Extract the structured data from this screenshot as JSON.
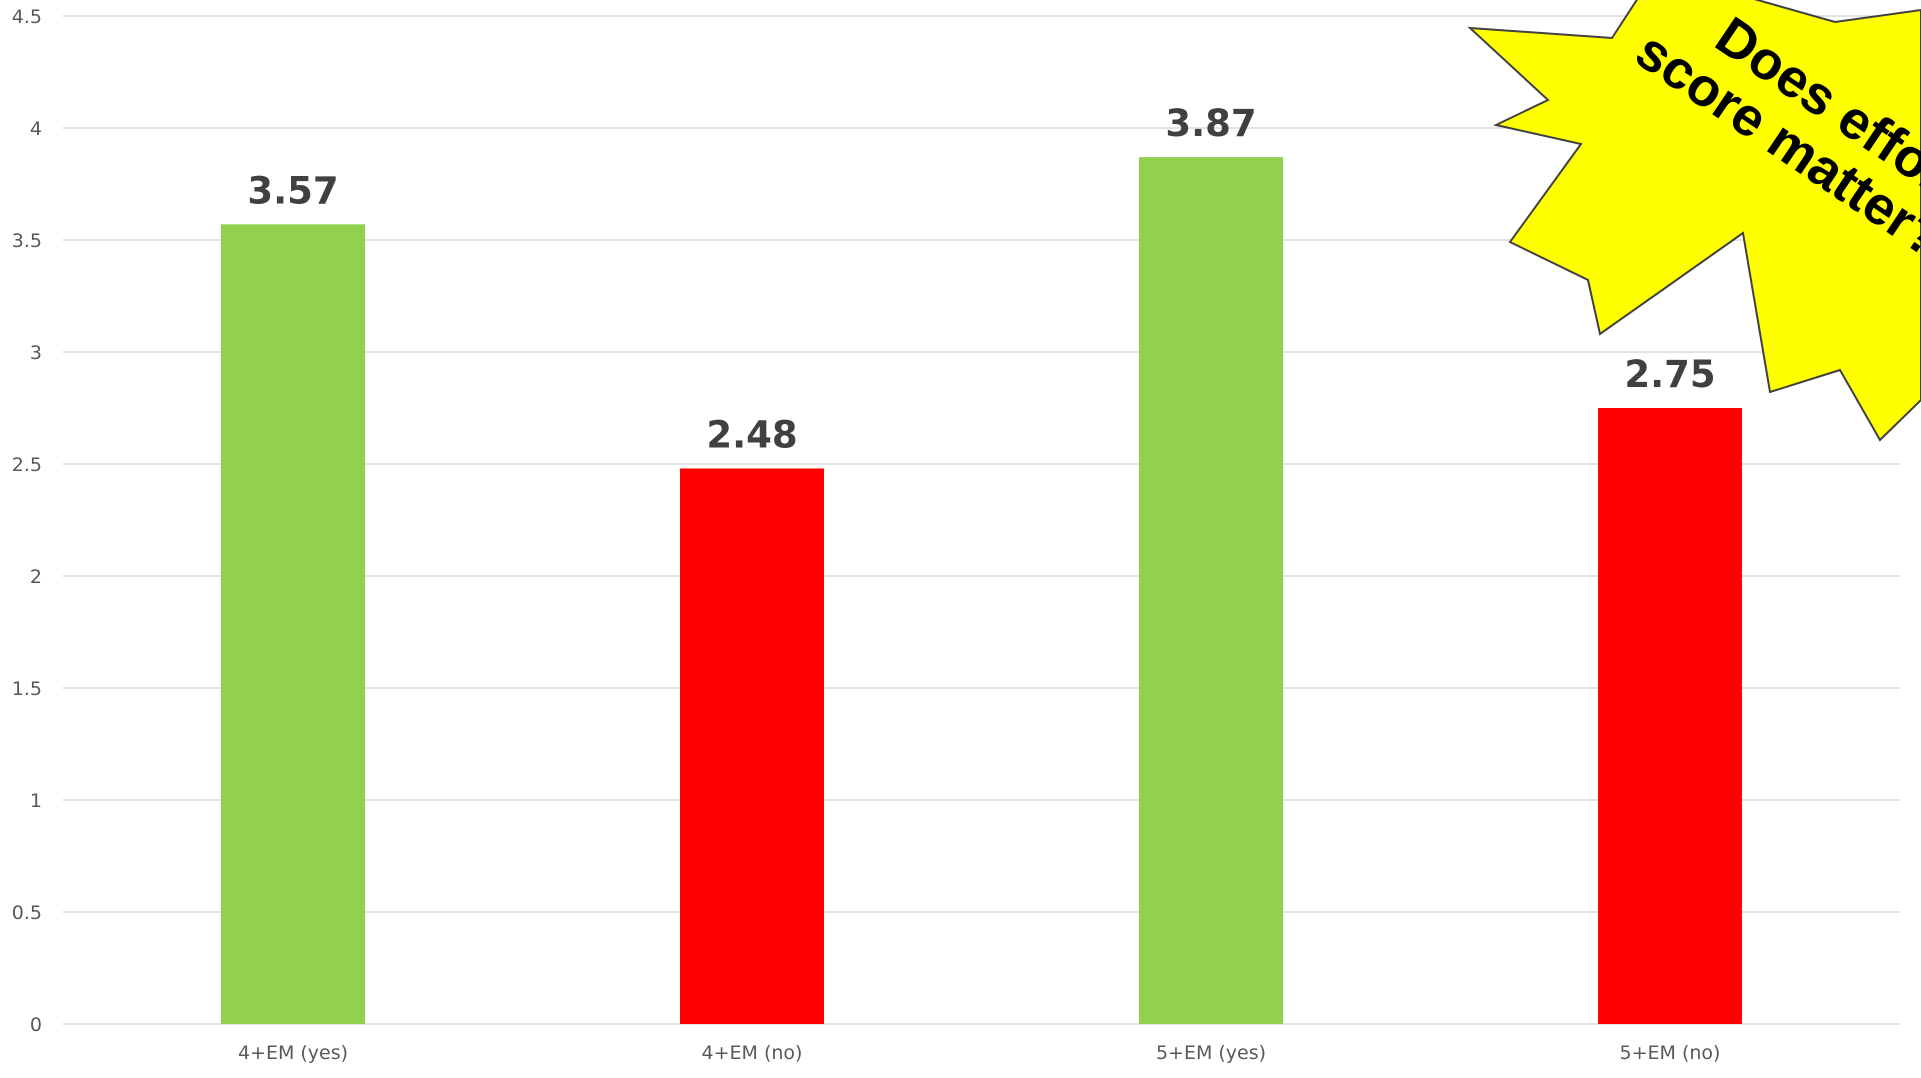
{
  "chart_data": {
    "type": "bar",
    "categories": [
      "4+EM (yes)",
      "4+EM (no)",
      "5+EM (yes)",
      "5+EM (no)"
    ],
    "values": [
      3.57,
      2.48,
      3.87,
      2.75
    ],
    "data_labels": [
      "3.57",
      "2.48",
      "3.87",
      "2.75"
    ],
    "bar_colors": [
      "#92d050",
      "#ff0000",
      "#92d050",
      "#ff0000"
    ],
    "title": "",
    "xlabel": "",
    "ylabel": "",
    "ylim": [
      0,
      4.5
    ],
    "yticks": [
      0,
      0.5,
      1,
      1.5,
      2,
      2.5,
      3,
      3.5,
      4,
      4.5
    ],
    "ytick_labels": [
      "0",
      "0.5",
      "1",
      "1.5",
      "2",
      "2.5",
      "3",
      "3.5",
      "4",
      "4.5"
    ],
    "grid": true,
    "legend": "none"
  },
  "callout": {
    "line1": "Does effort",
    "line2": "score matter?",
    "fill": "#ffff00",
    "stroke": "#404040"
  },
  "colors": {
    "gridline": "#d9d9d9",
    "axis_text": "#595959",
    "data_label": "#404040"
  }
}
